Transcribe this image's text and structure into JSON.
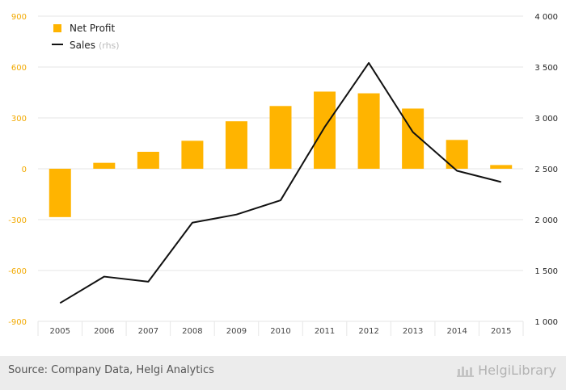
{
  "chart_data": {
    "type": "bar",
    "categories": [
      "2005",
      "2006",
      "2007",
      "2008",
      "2009",
      "2010",
      "2011",
      "2012",
      "2013",
      "2014",
      "2015"
    ],
    "series": [
      {
        "name": "Net Profit",
        "type": "bar",
        "axis": "left",
        "values": [
          -285,
          35,
          100,
          165,
          280,
          370,
          455,
          445,
          355,
          170,
          22
        ]
      },
      {
        "name": "Sales",
        "name_suffix": "(rhs)",
        "type": "line",
        "axis": "right",
        "values": [
          1180,
          1440,
          1390,
          1970,
          2050,
          2190,
          2910,
          3540,
          2860,
          2480,
          2370
        ]
      }
    ],
    "y_left": {
      "min": -900,
      "max": 900,
      "ticks": [
        -900,
        -600,
        -300,
        0,
        300,
        600,
        900
      ],
      "tick_labels": [
        "-900",
        "-600",
        "-300",
        "0",
        "300",
        "600",
        "900"
      ]
    },
    "y_right": {
      "min": 1000,
      "max": 4000,
      "ticks": [
        1000,
        1500,
        2000,
        2500,
        3000,
        3500,
        4000
      ],
      "tick_labels": [
        "1 000",
        "1 500",
        "2 000",
        "2 500",
        "3 000",
        "3 500",
        "4 000"
      ]
    },
    "grid": true,
    "legend_position": "top-left",
    "colors": {
      "bar": "#ffb400",
      "line": "#111111",
      "left_axis": "#f2a900",
      "grid": "#e6e6e6"
    }
  },
  "footer": {
    "source": "Source: Company Data, Helgi Analytics",
    "brand": "HelgiLibrary"
  }
}
